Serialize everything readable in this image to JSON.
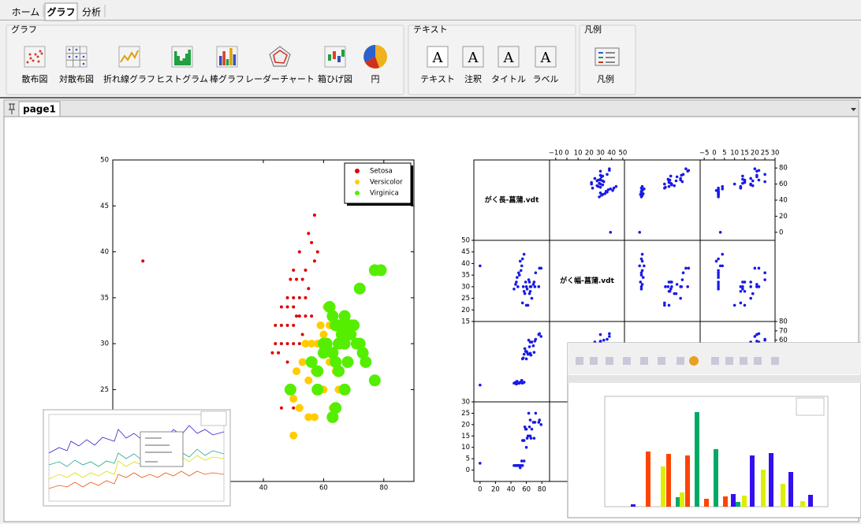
{
  "tabs": [
    "ホーム",
    "グラフ",
    "分析"
  ],
  "active_tab": 1,
  "ribbon": {
    "groups": [
      {
        "title": "グラフ",
        "items": [
          "散布図",
          "対散布図",
          "折れ線グラフ",
          "ヒストグラム",
          "棒グラフ",
          "レーダーチャート",
          "箱ひげ図",
          "円"
        ]
      },
      {
        "title": "テキスト",
        "items": [
          "テキスト",
          "注釈",
          "タイトル",
          "ラベル"
        ]
      },
      {
        "title": "凡例",
        "items": [
          "凡例"
        ]
      }
    ]
  },
  "document_tab": "page1",
  "scatter_chart": {
    "type": "scatter",
    "xlim": [
      -10,
      90
    ],
    "ylim": [
      15,
      50
    ],
    "xticks": [
      40,
      60,
      80
    ],
    "yticks": [
      25,
      30,
      35,
      40,
      45,
      50
    ],
    "legend_position": "upper right",
    "series": [
      {
        "name": "Setosa",
        "color": "#e00000",
        "marker_size": 2,
        "x": [
          0,
          57,
          55,
          56,
          52,
          58,
          50,
          54,
          57,
          49,
          51,
          53,
          55,
          48,
          50,
          52,
          54,
          46,
          48,
          50,
          51,
          52,
          54,
          56,
          44,
          46,
          48,
          50,
          53,
          44,
          46,
          48,
          50,
          52,
          43,
          45,
          48,
          46,
          50
        ],
        "values": [
          39,
          44,
          42,
          41,
          40,
          40,
          38,
          38,
          39,
          37,
          37,
          37,
          36,
          35,
          35,
          35,
          35,
          34,
          34,
          34,
          33,
          33,
          33,
          33,
          32,
          32,
          32,
          32,
          31,
          30,
          30,
          30,
          30,
          30,
          29,
          29,
          28,
          23,
          23
        ]
      },
      {
        "name": "Versicolor",
        "color": "#ffcc00",
        "marker_size": 5,
        "x": [
          49,
          50,
          52,
          51,
          53,
          55,
          57,
          54,
          56,
          58,
          60,
          60,
          61,
          63,
          62,
          64,
          58,
          60,
          63,
          65,
          55,
          50,
          57,
          66,
          67,
          59,
          62
        ],
        "values": [
          25,
          24,
          23,
          27,
          28,
          26,
          27,
          30,
          30,
          30,
          31,
          29,
          34,
          33,
          28,
          27,
          25,
          25,
          23,
          25,
          22,
          20,
          22,
          30,
          31,
          32,
          32
        ]
      },
      {
        "name": "Virginica",
        "color": "#55ee00",
        "marker_size": 7.5,
        "x": [
          49,
          56,
          58,
          58,
          60,
          60,
          61,
          62,
          63,
          63,
          64,
          64,
          65,
          65,
          66,
          67,
          67,
          67,
          68,
          68,
          69,
          69,
          70,
          71,
          72,
          72,
          73,
          74,
          77,
          79,
          77,
          63,
          64,
          65
        ],
        "values": [
          25,
          28,
          27,
          25,
          29,
          30,
          30,
          34,
          33,
          29,
          32,
          28,
          30,
          32,
          31,
          33,
          30,
          25,
          32,
          28,
          31,
          32,
          32,
          30,
          36,
          30,
          29,
          28,
          38,
          38,
          26,
          22,
          23,
          27
        ]
      }
    ]
  },
  "scatter_matrix": {
    "type": "scatter_matrix",
    "color": "#1a1ae6",
    "variables": [
      {
        "label": "がく長-菖蒲.vdt",
        "xlim": [
          -8,
          90
        ],
        "ylim": [
          -10,
          90
        ],
        "xticks": [
          0,
          20,
          40,
          60,
          80
        ],
        "yticks": [
          0,
          20,
          40,
          60,
          80
        ]
      },
      {
        "label": "がく幅-菖蒲.vdt",
        "xlim": [
          -15.5,
          51.5
        ],
        "ylim": [
          15,
          50
        ],
        "xticks": [
          {
            "value": -10,
            "label": "−10"
          },
          0,
          10,
          20,
          30,
          40,
          50
        ],
        "yticks": [
          15,
          20,
          25,
          30,
          35,
          40,
          45,
          50
        ]
      },
      {
        "xlim": [
          -5,
          80
        ],
        "ylim": [
          -6,
          80
        ],
        "yticks": [
          60,
          70,
          80
        ]
      },
      {
        "xlim": [
          -7,
          30
        ],
        "ylim": [
          -5,
          30
        ],
        "xticks": [
          {
            "value": -5,
            "label": "−5"
          },
          0,
          5,
          10,
          15,
          20,
          25,
          30
        ],
        "yticks": [
          0,
          5,
          10,
          15,
          20,
          25,
          30
        ]
      }
    ],
    "samples": [
      [
        51,
        35,
        14,
        2
      ],
      [
        49,
        30,
        14,
        2
      ],
      [
        47,
        32,
        13,
        2
      ],
      [
        46,
        31,
        15,
        2
      ],
      [
        50,
        36,
        14,
        2
      ],
      [
        54,
        39,
        17,
        4
      ],
      [
        48,
        34,
        16,
        2
      ],
      [
        52,
        41,
        15,
        1
      ],
      [
        55,
        42,
        14,
        2
      ],
      [
        57,
        44,
        15,
        4
      ],
      [
        44,
        29,
        14,
        2
      ],
      [
        53,
        37,
        15,
        2
      ],
      [
        70,
        32,
        47,
        14
      ],
      [
        64,
        32,
        45,
        15
      ],
      [
        55,
        23,
        40,
        13
      ],
      [
        65,
        28,
        46,
        15
      ],
      [
        57,
        28,
        45,
        13
      ],
      [
        60,
        22,
        40,
        10
      ],
      [
        61,
        29,
        47,
        14
      ],
      [
        56,
        30,
        41,
        13
      ],
      [
        59,
        32,
        48,
        18
      ],
      [
        62,
        22,
        45,
        15
      ],
      [
        66,
        30,
        44,
        14
      ],
      [
        63,
        33,
        60,
        25
      ],
      [
        58,
        27,
        51,
        19
      ],
      [
        71,
        30,
        59,
        21
      ],
      [
        65,
        30,
        58,
        22
      ],
      [
        76,
        30,
        66,
        21
      ],
      [
        72,
        36,
        61,
        25
      ],
      [
        77,
        38,
        67,
        22
      ],
      [
        67,
        25,
        58,
        18
      ],
      [
        69,
        31,
        54,
        21
      ],
      [
        64,
        27,
        53,
        19
      ],
      [
        79,
        38,
        64,
        20
      ],
      [
        60,
        30,
        48,
        18
      ],
      [
        0,
        39,
        12,
        3
      ]
    ]
  }
}
